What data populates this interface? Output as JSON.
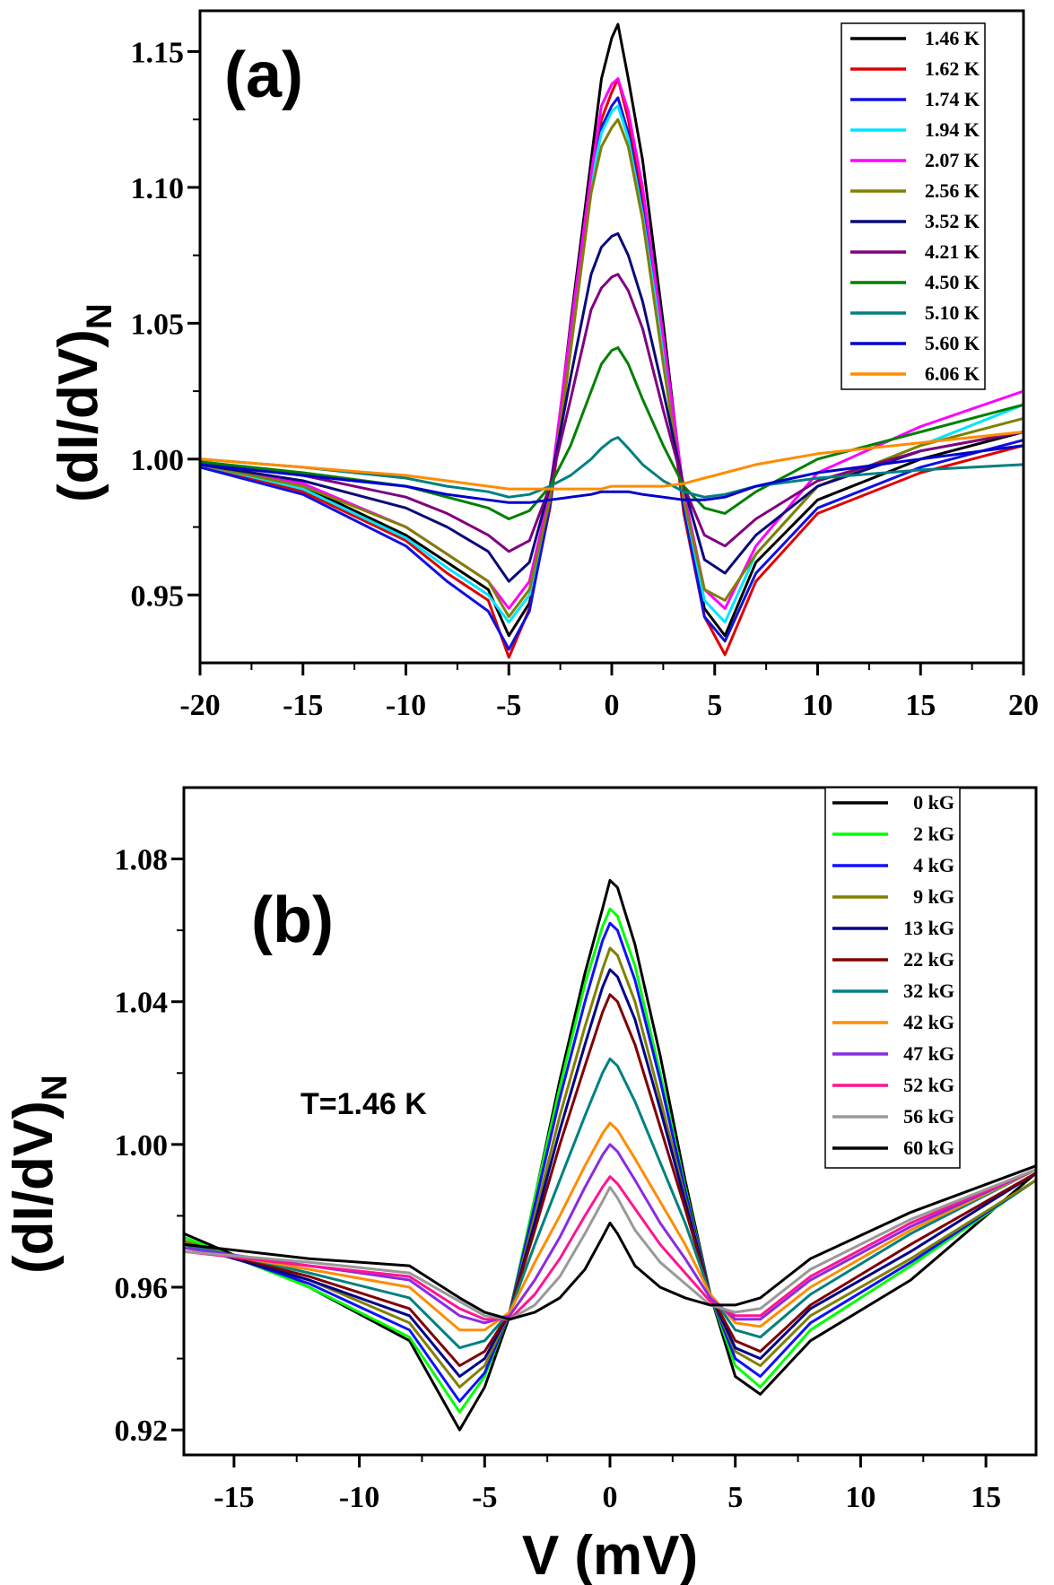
{
  "chart_data": [
    {
      "type": "line",
      "panel_label": "(a)",
      "ylabel_main": "(dI/dV)",
      "ylabel_sub": "N",
      "xlabel": "",
      "xlim": [
        -20,
        20
      ],
      "ylim": [
        0.925,
        1.165
      ],
      "xticks": [
        -20,
        -15,
        -10,
        -5,
        0,
        5,
        10,
        15,
        20
      ],
      "xtick_labels": [
        "-20",
        "-15",
        "-10",
        "-5",
        "0",
        "5",
        "10",
        "15",
        "20"
      ],
      "yticks": [
        0.95,
        1.0,
        1.05,
        1.1,
        1.15
      ],
      "ytick_labels": [
        "0.95",
        "1.00",
        "1.05",
        "1.10",
        "1.15"
      ],
      "legend_position": "top-right",
      "x": [
        -20,
        -15,
        -10,
        -8,
        -6,
        -5,
        -4,
        -3,
        -2,
        -1,
        -0.5,
        0,
        0.3,
        0.8,
        1.5,
        2.5,
        3.5,
        4.5,
        5.5,
        7,
        10,
        15,
        20
      ],
      "series": [
        {
          "name": "1.46 K",
          "color": "#000000",
          "values": [
            0.998,
            0.99,
            0.972,
            0.962,
            0.952,
            0.935,
            0.947,
            0.985,
            1.05,
            1.11,
            1.14,
            1.155,
            1.16,
            1.14,
            1.11,
            1.05,
            0.985,
            0.945,
            0.935,
            0.962,
            0.985,
            1.0,
            1.01
          ]
        },
        {
          "name": "1.62 K",
          "color": "#e00000",
          "values": [
            0.998,
            0.988,
            0.97,
            0.958,
            0.948,
            0.927,
            0.945,
            0.982,
            1.04,
            1.1,
            1.125,
            1.135,
            1.14,
            1.125,
            1.095,
            1.04,
            0.98,
            0.942,
            0.928,
            0.955,
            0.98,
            0.995,
            1.005
          ]
        },
        {
          "name": "1.74 K",
          "color": "#1010e0",
          "values": [
            0.997,
            0.987,
            0.968,
            0.955,
            0.944,
            0.93,
            0.944,
            0.983,
            1.042,
            1.1,
            1.122,
            1.13,
            1.133,
            1.12,
            1.092,
            1.04,
            0.982,
            0.942,
            0.933,
            0.958,
            0.982,
            0.997,
            1.007
          ]
        },
        {
          "name": "1.94 K",
          "color": "#00e5ff",
          "values": [
            0.998,
            0.989,
            0.971,
            0.96,
            0.95,
            0.94,
            0.95,
            0.986,
            1.045,
            1.102,
            1.12,
            1.128,
            1.13,
            1.118,
            1.09,
            1.04,
            0.985,
            0.948,
            0.94,
            0.965,
            0.99,
            1.005,
            1.02
          ]
        },
        {
          "name": "2.07 K",
          "color": "#ff00ff",
          "values": [
            0.999,
            0.991,
            0.975,
            0.965,
            0.955,
            0.945,
            0.955,
            0.988,
            1.048,
            1.105,
            1.13,
            1.138,
            1.14,
            1.128,
            1.1,
            1.045,
            0.988,
            0.952,
            0.945,
            0.968,
            0.995,
            1.012,
            1.025
          ]
        },
        {
          "name": "2.56 K",
          "color": "#808000",
          "values": [
            0.998,
            0.99,
            0.975,
            0.965,
            0.955,
            0.942,
            0.952,
            0.985,
            1.04,
            1.098,
            1.115,
            1.122,
            1.125,
            1.115,
            1.088,
            1.035,
            0.985,
            0.952,
            0.948,
            0.965,
            0.99,
            1.005,
            1.015
          ]
        },
        {
          "name": "3.52 K",
          "color": "#0a0a7a",
          "values": [
            0.998,
            0.992,
            0.982,
            0.975,
            0.966,
            0.955,
            0.962,
            0.99,
            1.03,
            1.068,
            1.078,
            1.082,
            1.083,
            1.075,
            1.058,
            1.025,
            0.99,
            0.963,
            0.958,
            0.972,
            0.99,
            1.003,
            1.01
          ]
        },
        {
          "name": "4.21 K",
          "color": "#800080",
          "values": [
            0.999,
            0.994,
            0.986,
            0.98,
            0.972,
            0.966,
            0.97,
            0.99,
            1.022,
            1.055,
            1.063,
            1.067,
            1.068,
            1.062,
            1.048,
            1.018,
            0.99,
            0.972,
            0.968,
            0.978,
            0.992,
            1.003,
            1.01
          ]
        },
        {
          "name": "4.50 K",
          "color": "#008000",
          "values": [
            0.999,
            0.995,
            0.99,
            0.986,
            0.982,
            0.978,
            0.981,
            0.99,
            1.005,
            1.025,
            1.035,
            1.04,
            1.041,
            1.035,
            1.022,
            1.005,
            0.99,
            0.982,
            0.98,
            0.988,
            1.0,
            1.01,
            1.02
          ]
        },
        {
          "name": "5.10 K",
          "color": "#008080",
          "values": [
            1.0,
            0.997,
            0.993,
            0.99,
            0.988,
            0.986,
            0.987,
            0.99,
            0.994,
            1.0,
            1.004,
            1.007,
            1.008,
            1.004,
            0.998,
            0.992,
            0.988,
            0.986,
            0.987,
            0.99,
            0.993,
            0.996,
            0.998
          ]
        },
        {
          "name": "5.60 K",
          "color": "#0000cd",
          "values": [
            0.998,
            0.994,
            0.99,
            0.987,
            0.985,
            0.984,
            0.984,
            0.985,
            0.986,
            0.987,
            0.988,
            0.988,
            0.988,
            0.988,
            0.987,
            0.986,
            0.985,
            0.985,
            0.986,
            0.99,
            0.995,
            1.0,
            1.005
          ]
        },
        {
          "name": "6.06 K",
          "color": "#ff8c00",
          "values": [
            1.0,
            0.997,
            0.994,
            0.992,
            0.99,
            0.989,
            0.989,
            0.989,
            0.989,
            0.989,
            0.989,
            0.99,
            0.99,
            0.99,
            0.99,
            0.99,
            0.991,
            0.993,
            0.995,
            0.998,
            1.002,
            1.006,
            1.01
          ]
        }
      ]
    },
    {
      "type": "line",
      "panel_label": "(b)",
      "annotation": "T=1.46 K",
      "ylabel_main": "(dI/dV)",
      "ylabel_sub": "N",
      "xlabel": "V (mV)",
      "xlim": [
        -17,
        17
      ],
      "ylim": [
        0.913,
        1.1
      ],
      "xticks": [
        -15,
        -10,
        -5,
        0,
        5,
        10,
        15
      ],
      "xtick_labels": [
        "-15",
        "-10",
        "-5",
        "0",
        "5",
        "10",
        "15"
      ],
      "yticks": [
        0.92,
        0.96,
        1.0,
        1.04,
        1.08
      ],
      "ytick_labels": [
        "0.92",
        "0.96",
        "1.00",
        "1.04",
        "1.08"
      ],
      "legend_position": "top-right",
      "x": [
        -17,
        -12,
        -8,
        -6,
        -5,
        -4,
        -3,
        -2,
        -1,
        -0.3,
        0,
        0.3,
        1,
        2,
        3,
        4,
        5,
        6,
        8,
        12,
        17
      ],
      "series": [
        {
          "name": "0 kG",
          "color": "#000000",
          "values": [
            0.975,
            0.96,
            0.945,
            0.92,
            0.932,
            0.952,
            0.985,
            1.018,
            1.048,
            1.066,
            1.074,
            1.072,
            1.056,
            1.025,
            0.99,
            0.958,
            0.935,
            0.93,
            0.945,
            0.962,
            0.992
          ]
        },
        {
          "name": "2 kG",
          "color": "#00ff00",
          "values": [
            0.974,
            0.96,
            0.946,
            0.925,
            0.935,
            0.953,
            0.985,
            1.016,
            1.045,
            1.061,
            1.066,
            1.064,
            1.05,
            1.02,
            0.988,
            0.958,
            0.938,
            0.932,
            0.948,
            0.966,
            0.99
          ]
        },
        {
          "name": "4 kG",
          "color": "#1010ff",
          "values": [
            0.973,
            0.961,
            0.948,
            0.928,
            0.936,
            0.953,
            0.983,
            1.013,
            1.04,
            1.057,
            1.062,
            1.06,
            1.046,
            1.018,
            0.987,
            0.958,
            0.94,
            0.935,
            0.95,
            0.967,
            0.99
          ]
        },
        {
          "name": "9 kG",
          "color": "#808000",
          "values": [
            0.973,
            0.962,
            0.95,
            0.932,
            0.938,
            0.953,
            0.98,
            1.008,
            1.033,
            1.049,
            1.055,
            1.053,
            1.04,
            1.013,
            0.985,
            0.958,
            0.942,
            0.938,
            0.952,
            0.968,
            0.99
          ]
        },
        {
          "name": "13 kG",
          "color": "#00008b",
          "values": [
            0.972,
            0.962,
            0.952,
            0.935,
            0.94,
            0.953,
            0.978,
            1.004,
            1.028,
            1.044,
            1.049,
            1.047,
            1.035,
            1.01,
            0.984,
            0.958,
            0.943,
            0.94,
            0.954,
            0.97,
            0.992
          ]
        },
        {
          "name": "22 kG",
          "color": "#800000",
          "values": [
            0.972,
            0.963,
            0.954,
            0.938,
            0.942,
            0.953,
            0.976,
            1.0,
            1.022,
            1.037,
            1.042,
            1.04,
            1.028,
            1.005,
            0.982,
            0.958,
            0.945,
            0.942,
            0.955,
            0.972,
            0.992
          ]
        },
        {
          "name": "32 kG",
          "color": "#008080",
          "values": [
            0.972,
            0.964,
            0.957,
            0.943,
            0.945,
            0.953,
            0.972,
            0.99,
            1.008,
            1.02,
            1.024,
            1.022,
            1.012,
            0.995,
            0.978,
            0.958,
            0.948,
            0.946,
            0.958,
            0.975,
            0.993
          ]
        },
        {
          "name": "42 kG",
          "color": "#ff8c00",
          "values": [
            0.971,
            0.965,
            0.96,
            0.948,
            0.948,
            0.953,
            0.967,
            0.98,
            0.994,
            1.003,
            1.006,
            1.004,
            0.996,
            0.984,
            0.972,
            0.958,
            0.95,
            0.949,
            0.96,
            0.976,
            0.993
          ]
        },
        {
          "name": "47 kG",
          "color": "#8a2be2",
          "values": [
            0.971,
            0.966,
            0.962,
            0.952,
            0.95,
            0.952,
            0.962,
            0.974,
            0.988,
            0.997,
            1.0,
            0.998,
            0.99,
            0.978,
            0.968,
            0.957,
            0.951,
            0.951,
            0.962,
            0.977,
            0.993
          ]
        },
        {
          "name": "52 kG",
          "color": "#ff1493",
          "values": [
            0.97,
            0.966,
            0.963,
            0.954,
            0.951,
            0.951,
            0.958,
            0.968,
            0.98,
            0.988,
            0.991,
            0.989,
            0.982,
            0.972,
            0.964,
            0.956,
            0.952,
            0.952,
            0.963,
            0.978,
            0.993
          ]
        },
        {
          "name": "56 kG",
          "color": "#999999",
          "values": [
            0.97,
            0.967,
            0.964,
            0.956,
            0.952,
            0.951,
            0.955,
            0.963,
            0.975,
            0.984,
            0.988,
            0.985,
            0.976,
            0.967,
            0.961,
            0.955,
            0.953,
            0.954,
            0.965,
            0.979,
            0.993
          ]
        },
        {
          "name": "60 kG",
          "color": "#000000",
          "values": [
            0.972,
            0.968,
            0.966,
            0.957,
            0.953,
            0.951,
            0.953,
            0.957,
            0.965,
            0.974,
            0.978,
            0.975,
            0.966,
            0.96,
            0.957,
            0.955,
            0.955,
            0.957,
            0.968,
            0.981,
            0.994
          ]
        }
      ]
    }
  ]
}
